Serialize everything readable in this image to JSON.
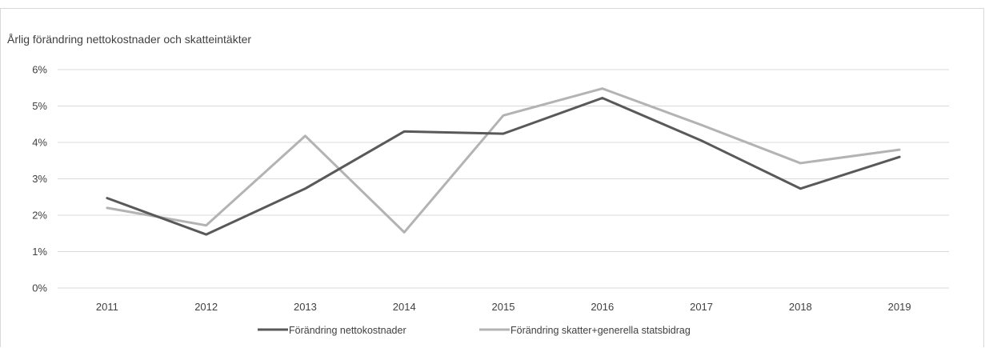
{
  "chart_data": {
    "type": "line",
    "title": "Årlig förändring nettokostnader och skatteintäkter",
    "xlabel": "",
    "ylabel": "",
    "categories": [
      "2011",
      "2012",
      "2013",
      "2014",
      "2015",
      "2016",
      "2017",
      "2018",
      "2019"
    ],
    "ylim": [
      0,
      6
    ],
    "yticks": [
      0,
      1,
      2,
      3,
      4,
      5,
      6
    ],
    "ytick_labels": [
      "0%",
      "1%",
      "2%",
      "3%",
      "4%",
      "5%",
      "6%"
    ],
    "grid": true,
    "legend_position": "bottom",
    "series": [
      {
        "name": "Förändring nettokostnader",
        "color": "#595959",
        "values": [
          2.47,
          1.47,
          2.73,
          4.3,
          4.24,
          5.22,
          4.05,
          2.73,
          3.6
        ]
      },
      {
        "name": "Förändring skatter+generella statsbidrag",
        "color": "#b3b3b3",
        "values": [
          2.2,
          1.72,
          4.18,
          1.53,
          4.74,
          5.48,
          4.48,
          3.43,
          3.8
        ]
      }
    ]
  }
}
